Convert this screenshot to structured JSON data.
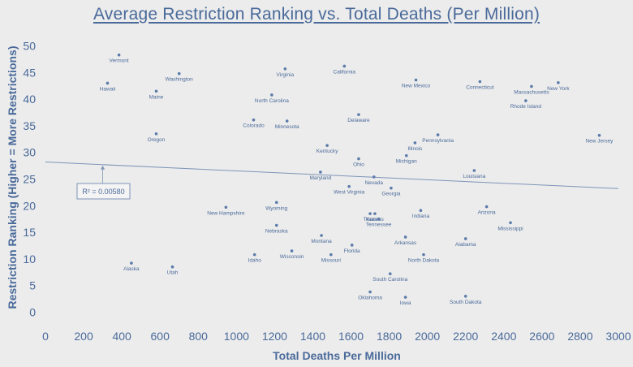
{
  "chart_data": {
    "type": "scatter",
    "title": "Average Restriction Ranking vs. Total Deaths (Per Million)",
    "xlabel": "Total Deaths Per Million",
    "ylabel": "Restriction Ranking (Higher = More Restrictions)",
    "xlim": [
      0,
      3000
    ],
    "ylim": [
      -1,
      51
    ],
    "xticks": [
      0,
      200,
      400,
      600,
      800,
      1000,
      1200,
      1400,
      1600,
      1800,
      2000,
      2200,
      2400,
      2600,
      2800,
      3000
    ],
    "yticks": [
      0,
      5,
      10,
      15,
      20,
      25,
      30,
      35,
      40,
      45,
      50
    ],
    "grid": false,
    "trendline": {
      "type": "linear",
      "x": [
        0,
        3000
      ],
      "y": [
        28.2,
        23.2
      ],
      "label": "R² = 0.00580"
    },
    "points": [
      {
        "label": "Vermont",
        "x": 385,
        "y": 48.3
      },
      {
        "label": "Hawaii",
        "x": 325,
        "y": 43
      },
      {
        "label": "Washington",
        "x": 700,
        "y": 44.8
      },
      {
        "label": "Maine",
        "x": 580,
        "y": 41.5
      },
      {
        "label": "Oregon",
        "x": 580,
        "y": 33.5
      },
      {
        "label": "Virginia",
        "x": 1255,
        "y": 45.7
      },
      {
        "label": "California",
        "x": 1565,
        "y": 46.2
      },
      {
        "label": "North Carolina",
        "x": 1185,
        "y": 40.8
      },
      {
        "label": "Colorado",
        "x": 1090,
        "y": 36.1
      },
      {
        "label": "Minnesota",
        "x": 1265,
        "y": 35.9
      },
      {
        "label": "Delaware",
        "x": 1640,
        "y": 37.1
      },
      {
        "label": "New Mexico",
        "x": 1940,
        "y": 43.6
      },
      {
        "label": "Connecticut",
        "x": 2275,
        "y": 43.3
      },
      {
        "label": "Massachusetts",
        "x": 2545,
        "y": 42.4
      },
      {
        "label": "New York",
        "x": 2685,
        "y": 43.1
      },
      {
        "label": "Rhode Island",
        "x": 2515,
        "y": 39.7
      },
      {
        "label": "New Jersey",
        "x": 2900,
        "y": 33.2
      },
      {
        "label": "Pennsylvania",
        "x": 2055,
        "y": 33.3
      },
      {
        "label": "Illinois",
        "x": 1935,
        "y": 31.8
      },
      {
        "label": "Michigan",
        "x": 1890,
        "y": 29.4
      },
      {
        "label": "Kentucky",
        "x": 1475,
        "y": 31.3
      },
      {
        "label": "Ohio",
        "x": 1640,
        "y": 28.8
      },
      {
        "label": "Maryland",
        "x": 1440,
        "y": 26.3
      },
      {
        "label": "Nevada",
        "x": 1720,
        "y": 25.4
      },
      {
        "label": "West Virginia",
        "x": 1590,
        "y": 23.6
      },
      {
        "label": "Georgia",
        "x": 1810,
        "y": 23.3
      },
      {
        "label": "Louisiana",
        "x": 2245,
        "y": 26.6
      },
      {
        "label": "New Hampshire",
        "x": 945,
        "y": 19.7
      },
      {
        "label": "Wyoming",
        "x": 1210,
        "y": 20.6
      },
      {
        "label": "Nebraska",
        "x": 1210,
        "y": 16.3
      },
      {
        "label": "Kansas",
        "x": 1725,
        "y": 18.5
      },
      {
        "label": "Texas",
        "x": 1700,
        "y": 18.5
      },
      {
        "label": "Tennessee",
        "x": 1745,
        "y": 17.5
      },
      {
        "label": "Indiana",
        "x": 1965,
        "y": 19.1
      },
      {
        "label": "Arizona",
        "x": 2310,
        "y": 19.8
      },
      {
        "label": "Mississippi",
        "x": 2435,
        "y": 16.8
      },
      {
        "label": "Montana",
        "x": 1445,
        "y": 14.4
      },
      {
        "label": "Arkansas",
        "x": 1885,
        "y": 14.1
      },
      {
        "label": "Alabama",
        "x": 2200,
        "y": 13.8
      },
      {
        "label": "Florida",
        "x": 1605,
        "y": 12.6
      },
      {
        "label": "Idaho",
        "x": 1095,
        "y": 10.8
      },
      {
        "label": "Wisconsin",
        "x": 1290,
        "y": 11.5
      },
      {
        "label": "Missouri",
        "x": 1495,
        "y": 10.8
      },
      {
        "label": "North Dakota",
        "x": 1980,
        "y": 10.8
      },
      {
        "label": "Alaska",
        "x": 450,
        "y": 9.2
      },
      {
        "label": "Utah",
        "x": 665,
        "y": 8.5
      },
      {
        "label": "South Carolina",
        "x": 1805,
        "y": 7.2
      },
      {
        "label": "Oklahoma",
        "x": 1700,
        "y": 3.8
      },
      {
        "label": "Iowa",
        "x": 1885,
        "y": 2.8
      },
      {
        "label": "South Dakota",
        "x": 2200,
        "y": 3.0
      }
    ]
  },
  "colors": {
    "background": "#ececec",
    "text": "#4a6a9a",
    "point": "#5b7baa",
    "trendline": "#7e95b8"
  }
}
